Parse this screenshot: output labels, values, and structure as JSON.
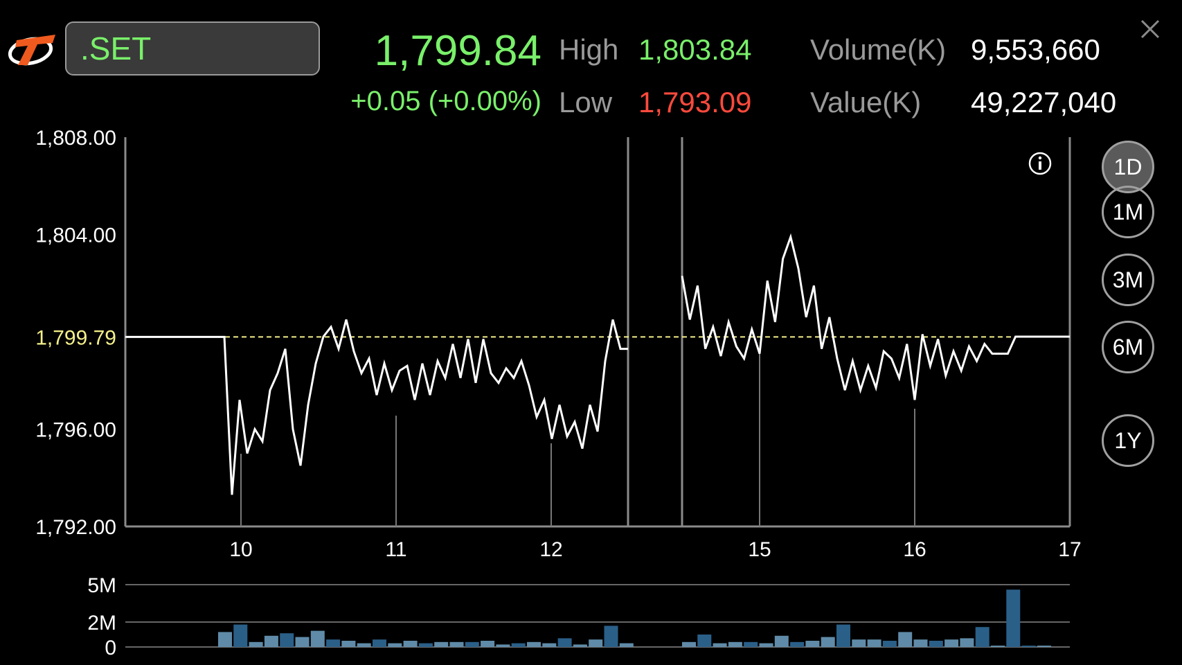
{
  "header": {
    "symbol": ".SET",
    "last": "1,799.84",
    "change": "+0.05 (+0.00%)",
    "high_label": "High",
    "high_value": "1,803.84",
    "low_label": "Low",
    "low_value": "1,793.09",
    "volume_label": "Volume(K)",
    "volume_value": "9,553,660",
    "value_label": "Value(K)",
    "value_value": "49,227,040"
  },
  "periods": [
    "1D",
    "1M",
    "3M",
    "6M",
    "1Y"
  ],
  "active_period": "1D",
  "colors": {
    "up": "#79f06a",
    "down": "#ff4a3d",
    "ref": "#f4f08a",
    "line": "#ffffff",
    "bar_dark": "#2a5f88",
    "bar_light": "#5f8ba8"
  },
  "chart_data": {
    "type": "line",
    "ytick_labels": [
      "1,808.00",
      "1,804.00",
      "1,799.79",
      "1,796.00",
      "1,792.00"
    ],
    "ylim": [
      1792,
      1808
    ],
    "reference": 1799.79,
    "xtick_labels": [
      "10",
      "11",
      "12",
      "15",
      "16",
      "17"
    ],
    "segments": [
      [
        1799.79,
        1799.79,
        1799.79,
        1799.79,
        1799.79,
        1799.79,
        1799.79,
        1799.79,
        1799.79,
        1799.79,
        1799.79,
        1799.79,
        1799.79,
        1799.79,
        1793.3,
        1797.2,
        1795.0,
        1796.0,
        1795.5,
        1797.6,
        1798.3,
        1799.3,
        1796.0,
        1794.5,
        1797.0,
        1798.7,
        1799.8,
        1800.2,
        1799.3,
        1800.5,
        1799.2,
        1798.3,
        1798.9,
        1797.4,
        1798.7,
        1797.6,
        1798.4,
        1798.6,
        1797.2,
        1798.7,
        1797.4,
        1798.8,
        1798.1,
        1799.5,
        1798.1,
        1799.7,
        1797.9,
        1799.7,
        1798.3,
        1797.9,
        1798.5,
        1798.1,
        1798.8,
        1797.8,
        1796.5,
        1797.2,
        1795.6,
        1797.0,
        1795.7,
        1796.3,
        1795.2,
        1797.0,
        1795.9,
        1798.8,
        1800.5,
        1799.3,
        1799.3
      ],
      [
        1802.3,
        1800.5,
        1801.9,
        1799.3,
        1800.2,
        1799.0,
        1800.4,
        1799.4,
        1798.9,
        1800.1,
        1799.1,
        1802.1,
        1800.4,
        1803.0,
        1803.9,
        1802.6,
        1800.6,
        1801.9,
        1799.3,
        1800.6,
        1798.9,
        1797.6,
        1798.8,
        1797.6,
        1798.6,
        1797.7,
        1799.2,
        1798.9,
        1798.1,
        1799.5,
        1797.2,
        1799.9,
        1798.6,
        1799.7,
        1798.2,
        1799.2,
        1798.4,
        1799.4,
        1798.8,
        1799.5,
        1799.1,
        1799.1,
        1799.1,
        1799.8,
        1799.8,
        1799.8,
        1799.8,
        1799.8,
        1799.8,
        1799.8,
        1799.8
      ]
    ],
    "volume": {
      "ytick_labels": [
        "5M",
        "2M",
        "0"
      ],
      "ylim": [
        0,
        5
      ],
      "segments": [
        [
          1.2,
          1.8,
          0.4,
          0.9,
          1.1,
          0.8,
          1.3,
          0.6,
          0.5,
          0.3,
          0.6,
          0.3,
          0.5,
          0.3,
          0.4,
          0.4,
          0.4,
          0.5,
          0.2,
          0.3,
          0.4,
          0.3,
          0.7,
          0.2,
          0.6,
          1.7,
          0.3
        ],
        [
          0.4,
          1.0,
          0.3,
          0.4,
          0.4,
          0.3,
          0.9,
          0.4,
          0.5,
          0.8,
          1.8,
          0.6,
          0.6,
          0.5,
          1.2,
          0.6,
          0.5,
          0.6,
          0.7,
          1.6,
          0.1,
          4.6,
          0.1,
          0.05
        ]
      ]
    }
  }
}
